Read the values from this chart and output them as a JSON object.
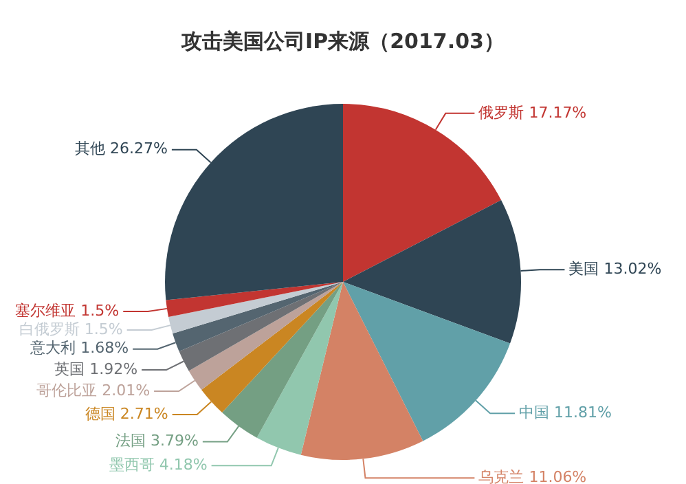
{
  "chart_data": {
    "type": "pie",
    "title": "攻击美国公司IP来源（2017.03）",
    "categories": [
      "俄罗斯",
      "美国",
      "中国",
      "乌克兰",
      "墨西哥",
      "法国",
      "德国",
      "哥伦比亚",
      "英国",
      "意大利",
      "白俄罗斯",
      "塞尔维亚",
      "其他"
    ],
    "values": [
      17.17,
      13.02,
      11.81,
      11.06,
      4.18,
      3.79,
      2.71,
      2.01,
      1.92,
      1.68,
      1.5,
      1.5,
      26.27
    ],
    "value_labels": [
      "17.17%",
      "13.02%",
      "11.81%",
      "11.06%",
      "4.18%",
      "3.79%",
      "2.71%",
      "2.01%",
      "1.92%",
      "1.68%",
      "1.5%",
      "1.5%",
      "26.27%"
    ],
    "colors": [
      "#c23531",
      "#2f4554",
      "#61a0a8",
      "#d48265",
      "#91c7ae",
      "#749f83",
      "#ca8622",
      "#bda29a",
      "#6e7074",
      "#546570",
      "#c4ccd3",
      "#c23531",
      "#2f4554"
    ],
    "legend": false
  }
}
